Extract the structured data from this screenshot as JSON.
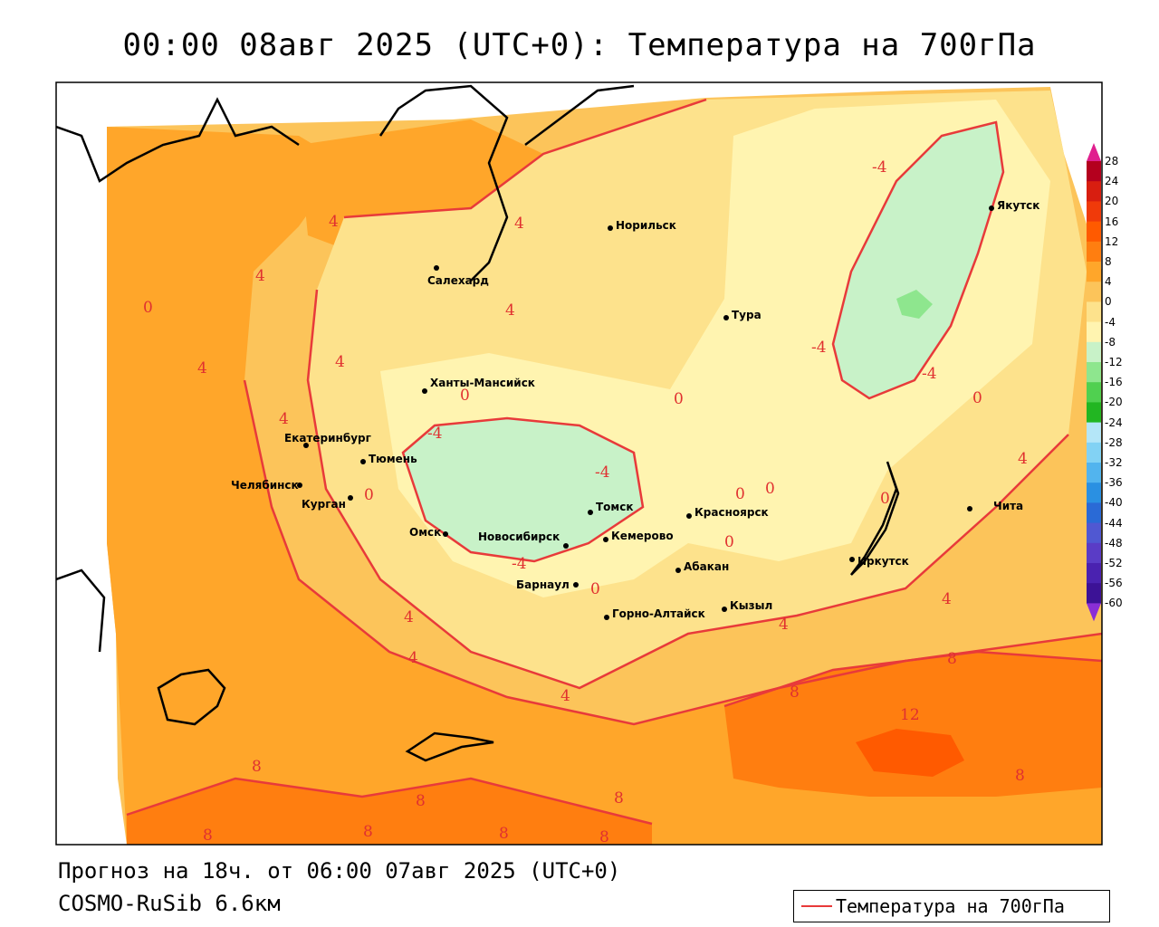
{
  "title": "00:00 08авг 2025 (UTC+0): Температура на 700гПа",
  "footer": {
    "forecast": "Прогноз на 18ч. от 06:00 07авг 2025 (UTC+0)",
    "model": "COSMO-RuSib 6.6км"
  },
  "legend": {
    "label": "Температура на 700гПа",
    "line_color": "#e83a3a"
  },
  "colorbar": {
    "levels": [
      "28",
      "24",
      "20",
      "16",
      "12",
      "8",
      "4",
      "0",
      "-4",
      "-8",
      "-12",
      "-16",
      "-20",
      "-24",
      "-28",
      "-32",
      "-36",
      "-40",
      "-44",
      "-48",
      "-52",
      "-56",
      "-60"
    ],
    "colors": [
      "#b4001e",
      "#d81e10",
      "#f03a0a",
      "#ff5a00",
      "#ff7e10",
      "#ffa62a",
      "#fcc45a",
      "#fde28c",
      "#fff4b0",
      "#c8f2c8",
      "#8ee68e",
      "#50d050",
      "#22b622",
      "#b4e6f8",
      "#82d2f4",
      "#52b4ee",
      "#2a90e2",
      "#2a6ad6",
      "#5058d2",
      "#5a3cc6",
      "#4a22b0",
      "#3c1296"
    ],
    "top_color": "#e0208e",
    "bottom_color": "#8a2ed6"
  },
  "cities": [
    {
      "name": "Норильск"
    },
    {
      "name": "Салехард"
    },
    {
      "name": "Тура"
    },
    {
      "name": "Якутск"
    },
    {
      "name": "Ханты-Мансийск"
    },
    {
      "name": "Екатеринбург"
    },
    {
      "name": "Тюмень"
    },
    {
      "name": "Челябинск"
    },
    {
      "name": "Курган"
    },
    {
      "name": "Омск"
    },
    {
      "name": "Новосибирск"
    },
    {
      "name": "Томск"
    },
    {
      "name": "Кемерово"
    },
    {
      "name": "Красноярск"
    },
    {
      "name": "Абакан"
    },
    {
      "name": "Барнаул"
    },
    {
      "name": "Горно-Алтайск"
    },
    {
      "name": "Кызыл"
    },
    {
      "name": "Иркутск"
    },
    {
      "name": "Чита"
    }
  ],
  "contour_labels": [
    "-4",
    "0",
    "4",
    "8",
    "12"
  ]
}
